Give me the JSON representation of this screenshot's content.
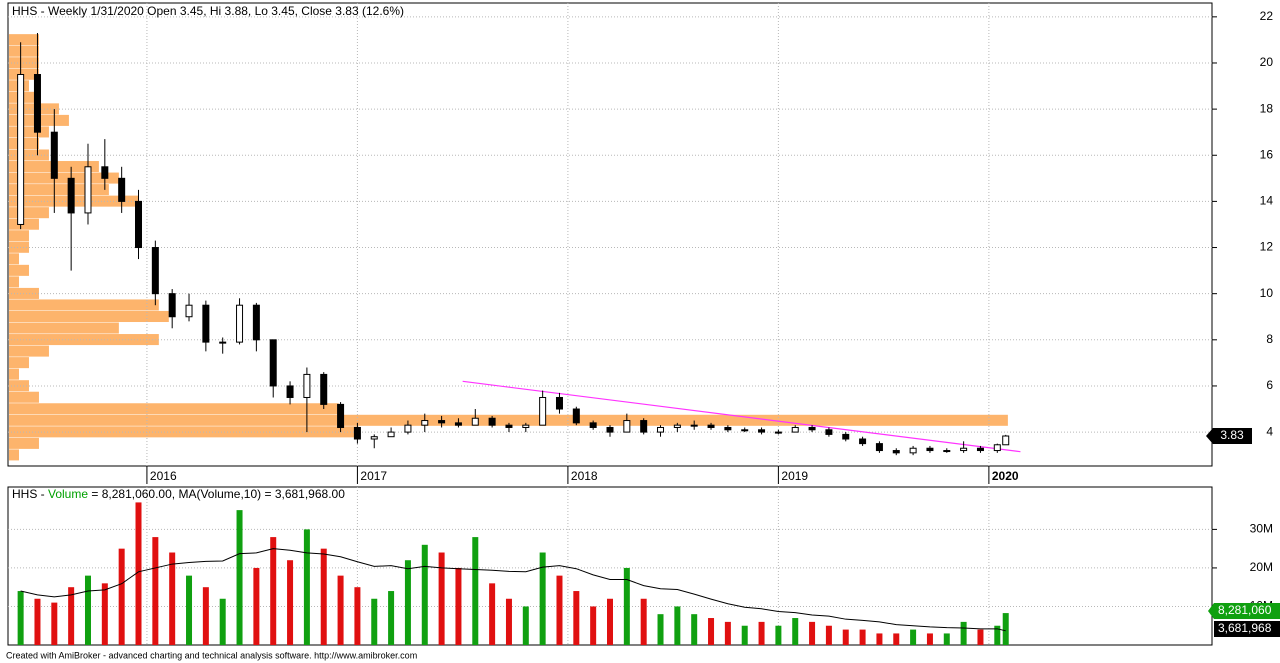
{
  "chart_data": [
    {
      "type": "candlestick",
      "title": "HHS - Weekly 1/31/2020 Open 3.45, Hi 3.88, Lo 3.45, Close 3.83 (12.6%)",
      "x": [
        2015.4,
        2015.48,
        2015.56,
        2015.64,
        2015.72,
        2015.8,
        2015.88,
        2015.96,
        2016.04,
        2016.12,
        2016.2,
        2016.28,
        2016.36,
        2016.44,
        2016.52,
        2016.6,
        2016.68,
        2016.76,
        2016.84,
        2016.92,
        2017.0,
        2017.08,
        2017.16,
        2017.24,
        2017.32,
        2017.4,
        2017.48,
        2017.56,
        2017.64,
        2017.72,
        2017.8,
        2017.88,
        2017.96,
        2018.04,
        2018.12,
        2018.2,
        2018.28,
        2018.36,
        2018.44,
        2018.52,
        2018.6,
        2018.68,
        2018.76,
        2018.84,
        2018.92,
        2019.0,
        2019.08,
        2019.16,
        2019.24,
        2019.32,
        2019.4,
        2019.48,
        2019.56,
        2019.64,
        2019.72,
        2019.8,
        2019.88,
        2019.96,
        2020.04,
        2020.08
      ],
      "open": [
        13.0,
        19.5,
        17.0,
        15.0,
        13.5,
        15.5,
        15.0,
        14.0,
        12.0,
        10.0,
        9.0,
        9.5,
        7.9,
        7.9,
        9.5,
        8.0,
        6.0,
        5.5,
        6.5,
        5.2,
        4.2,
        3.7,
        3.8,
        4.0,
        4.3,
        4.5,
        4.4,
        4.3,
        4.6,
        4.3,
        4.2,
        4.3,
        5.5,
        5.0,
        4.4,
        4.2,
        4.0,
        4.5,
        4.0,
        4.2,
        4.3,
        4.3,
        4.2,
        4.1,
        4.1,
        4.0,
        4.0,
        4.2,
        4.1,
        3.9,
        3.7,
        3.5,
        3.2,
        3.1,
        3.3,
        3.2,
        3.2,
        3.3,
        3.2,
        3.45
      ],
      "high": [
        20.9,
        21.3,
        18.0,
        15.5,
        16.5,
        16.7,
        15.5,
        14.5,
        12.3,
        10.2,
        10.0,
        9.7,
        8.1,
        9.8,
        9.6,
        8.0,
        6.2,
        6.8,
        6.6,
        5.3,
        4.4,
        3.9,
        4.2,
        4.5,
        4.8,
        4.7,
        4.6,
        5.0,
        4.7,
        4.4,
        4.4,
        5.8,
        5.7,
        5.1,
        4.5,
        4.3,
        4.8,
        4.6,
        4.3,
        4.4,
        4.5,
        4.4,
        4.3,
        4.2,
        4.2,
        4.1,
        4.3,
        4.3,
        4.2,
        4.0,
        3.8,
        3.6,
        3.3,
        3.4,
        3.4,
        3.3,
        3.6,
        3.4,
        3.5,
        3.88
      ],
      "low": [
        12.8,
        16.0,
        13.5,
        11.0,
        13.0,
        14.5,
        13.5,
        11.5,
        9.5,
        8.5,
        8.8,
        7.5,
        7.4,
        7.8,
        7.5,
        5.5,
        5.2,
        4.0,
        5.0,
        4.0,
        3.5,
        3.3,
        3.8,
        3.9,
        4.0,
        4.2,
        4.2,
        4.3,
        4.2,
        4.0,
        4.0,
        4.3,
        4.8,
        4.3,
        4.1,
        3.8,
        4.0,
        3.9,
        3.8,
        4.0,
        4.1,
        4.1,
        4.0,
        4.0,
        3.9,
        3.9,
        4.0,
        4.0,
        3.8,
        3.6,
        3.4,
        3.1,
        3.0,
        3.0,
        3.1,
        3.1,
        3.1,
        3.1,
        3.1,
        3.45
      ],
      "close": [
        19.5,
        17.0,
        15.0,
        13.5,
        15.5,
        15.0,
        14.0,
        12.0,
        10.0,
        9.0,
        9.5,
        7.9,
        7.9,
        9.5,
        8.0,
        6.0,
        5.5,
        6.5,
        5.2,
        4.2,
        3.7,
        3.8,
        4.0,
        4.3,
        4.5,
        4.4,
        4.3,
        4.6,
        4.3,
        4.2,
        4.3,
        5.5,
        5.0,
        4.4,
        4.2,
        4.0,
        4.5,
        4.0,
        4.2,
        4.3,
        4.3,
        4.2,
        4.1,
        4.1,
        4.0,
        4.0,
        4.2,
        4.1,
        3.9,
        3.7,
        3.5,
        3.2,
        3.1,
        3.3,
        3.2,
        3.2,
        3.3,
        3.2,
        3.45,
        3.83
      ],
      "volume_profile": {
        "color": "#fdb46c",
        "prices": [
          21,
          20.5,
          20,
          19.5,
          19,
          18.5,
          18,
          17.5,
          17,
          16.5,
          16,
          15.5,
          15,
          14.5,
          14,
          13.5,
          13,
          12.5,
          12,
          11.5,
          11,
          10.5,
          10,
          9.5,
          9,
          8.5,
          8,
          7.5,
          7,
          6.5,
          6,
          5.5,
          5,
          4.5,
          4,
          3.5,
          3
        ],
        "values": [
          3,
          3,
          3,
          3,
          2,
          3,
          5,
          6,
          4,
          3,
          4,
          9,
          11,
          10,
          13,
          4,
          3,
          2,
          2,
          1,
          2,
          1,
          3,
          15,
          16,
          11,
          15,
          4,
          2,
          1,
          2,
          3,
          33,
          100,
          35,
          3,
          1
        ]
      },
      "trendline": {
        "color": "#ff33ff",
        "x": [
          2017.5,
          2020.15
        ],
        "y": [
          6.2,
          3.15
        ]
      },
      "xlim": [
        2015.34,
        2021.06
      ],
      "xticks": [
        2016,
        2017,
        2018,
        2019,
        2020
      ],
      "ylim": [
        2.53,
        22.6
      ],
      "yticks": [
        4,
        6,
        8,
        10,
        12,
        14,
        16,
        18,
        20,
        22
      ],
      "grid": true
    },
    {
      "type": "bar",
      "title_parts": [
        {
          "text": "HHS - ",
          "color": "#000000"
        },
        {
          "text": "Volume",
          "color": "#00a000"
        },
        {
          "text": " = 8,281,060.00, MA(Volume,10) = 3,681,968.00",
          "color": "#000000"
        }
      ],
      "up_color": "#10a010",
      "down_color": "#e01010",
      "series": [
        {
          "name": "Volume",
          "type": "bar",
          "color": "#10a010",
          "values": [
            14000000,
            12000000,
            11000000,
            15000000,
            18000000,
            16000000,
            25000000,
            37000000,
            28000000,
            24000000,
            18000000,
            15000000,
            12000000,
            35000000,
            20000000,
            28000000,
            22000000,
            30000000,
            25000000,
            18000000,
            15000000,
            12000000,
            14000000,
            22000000,
            26000000,
            24000000,
            20000000,
            28000000,
            16000000,
            12000000,
            10000000,
            24000000,
            18000000,
            14000000,
            10000000,
            12000000,
            20000000,
            12000000,
            8000000,
            10000000,
            8000000,
            7000000,
            6000000,
            5000000,
            6000000,
            5000000,
            7000000,
            6000000,
            5000000,
            4000000,
            4000000,
            3000000,
            3000000,
            4000000,
            3000000,
            3000000,
            6000000,
            4000000,
            5000000,
            8281060
          ],
          "last_label": "8,281,060"
        },
        {
          "name": "MA(Volume,10)",
          "type": "line",
          "color": "#000000",
          "values": [
            14000000,
            13000000,
            12500000,
            13000000,
            14000000,
            14300000,
            15900000,
            19000000,
            20000000,
            21000000,
            21400000,
            21700000,
            21800000,
            23700000,
            23900000,
            25000000,
            24600000,
            23900000,
            23600000,
            22900000,
            21600000,
            20400000,
            20600000,
            19800000,
            20400000,
            20000000,
            19800000,
            19600000,
            19400000,
            19100000,
            19000000,
            20200000,
            20600000,
            19800000,
            18200000,
            17000000,
            17000000,
            15400000,
            14600000,
            14400000,
            13200000,
            11900000,
            10700000,
            9800000,
            9400000,
            8700000,
            8400000,
            7800000,
            7500000,
            6700000,
            6400000,
            6000000,
            5300000,
            5000000,
            4700000,
            4500000,
            4400000,
            4200000,
            4200000,
            3681968
          ],
          "last_label": "3,681,968"
        }
      ],
      "ylim": [
        0,
        41000000
      ],
      "yticks": [
        {
          "value": 10000000,
          "label": "10M"
        },
        {
          "value": 20000000,
          "label": "20M"
        },
        {
          "value": 30000000,
          "label": "30M"
        }
      ],
      "grid": true
    }
  ],
  "footer": "Created with AmiBroker - advanced charting and technical analysis software. http://www.amibroker.com"
}
